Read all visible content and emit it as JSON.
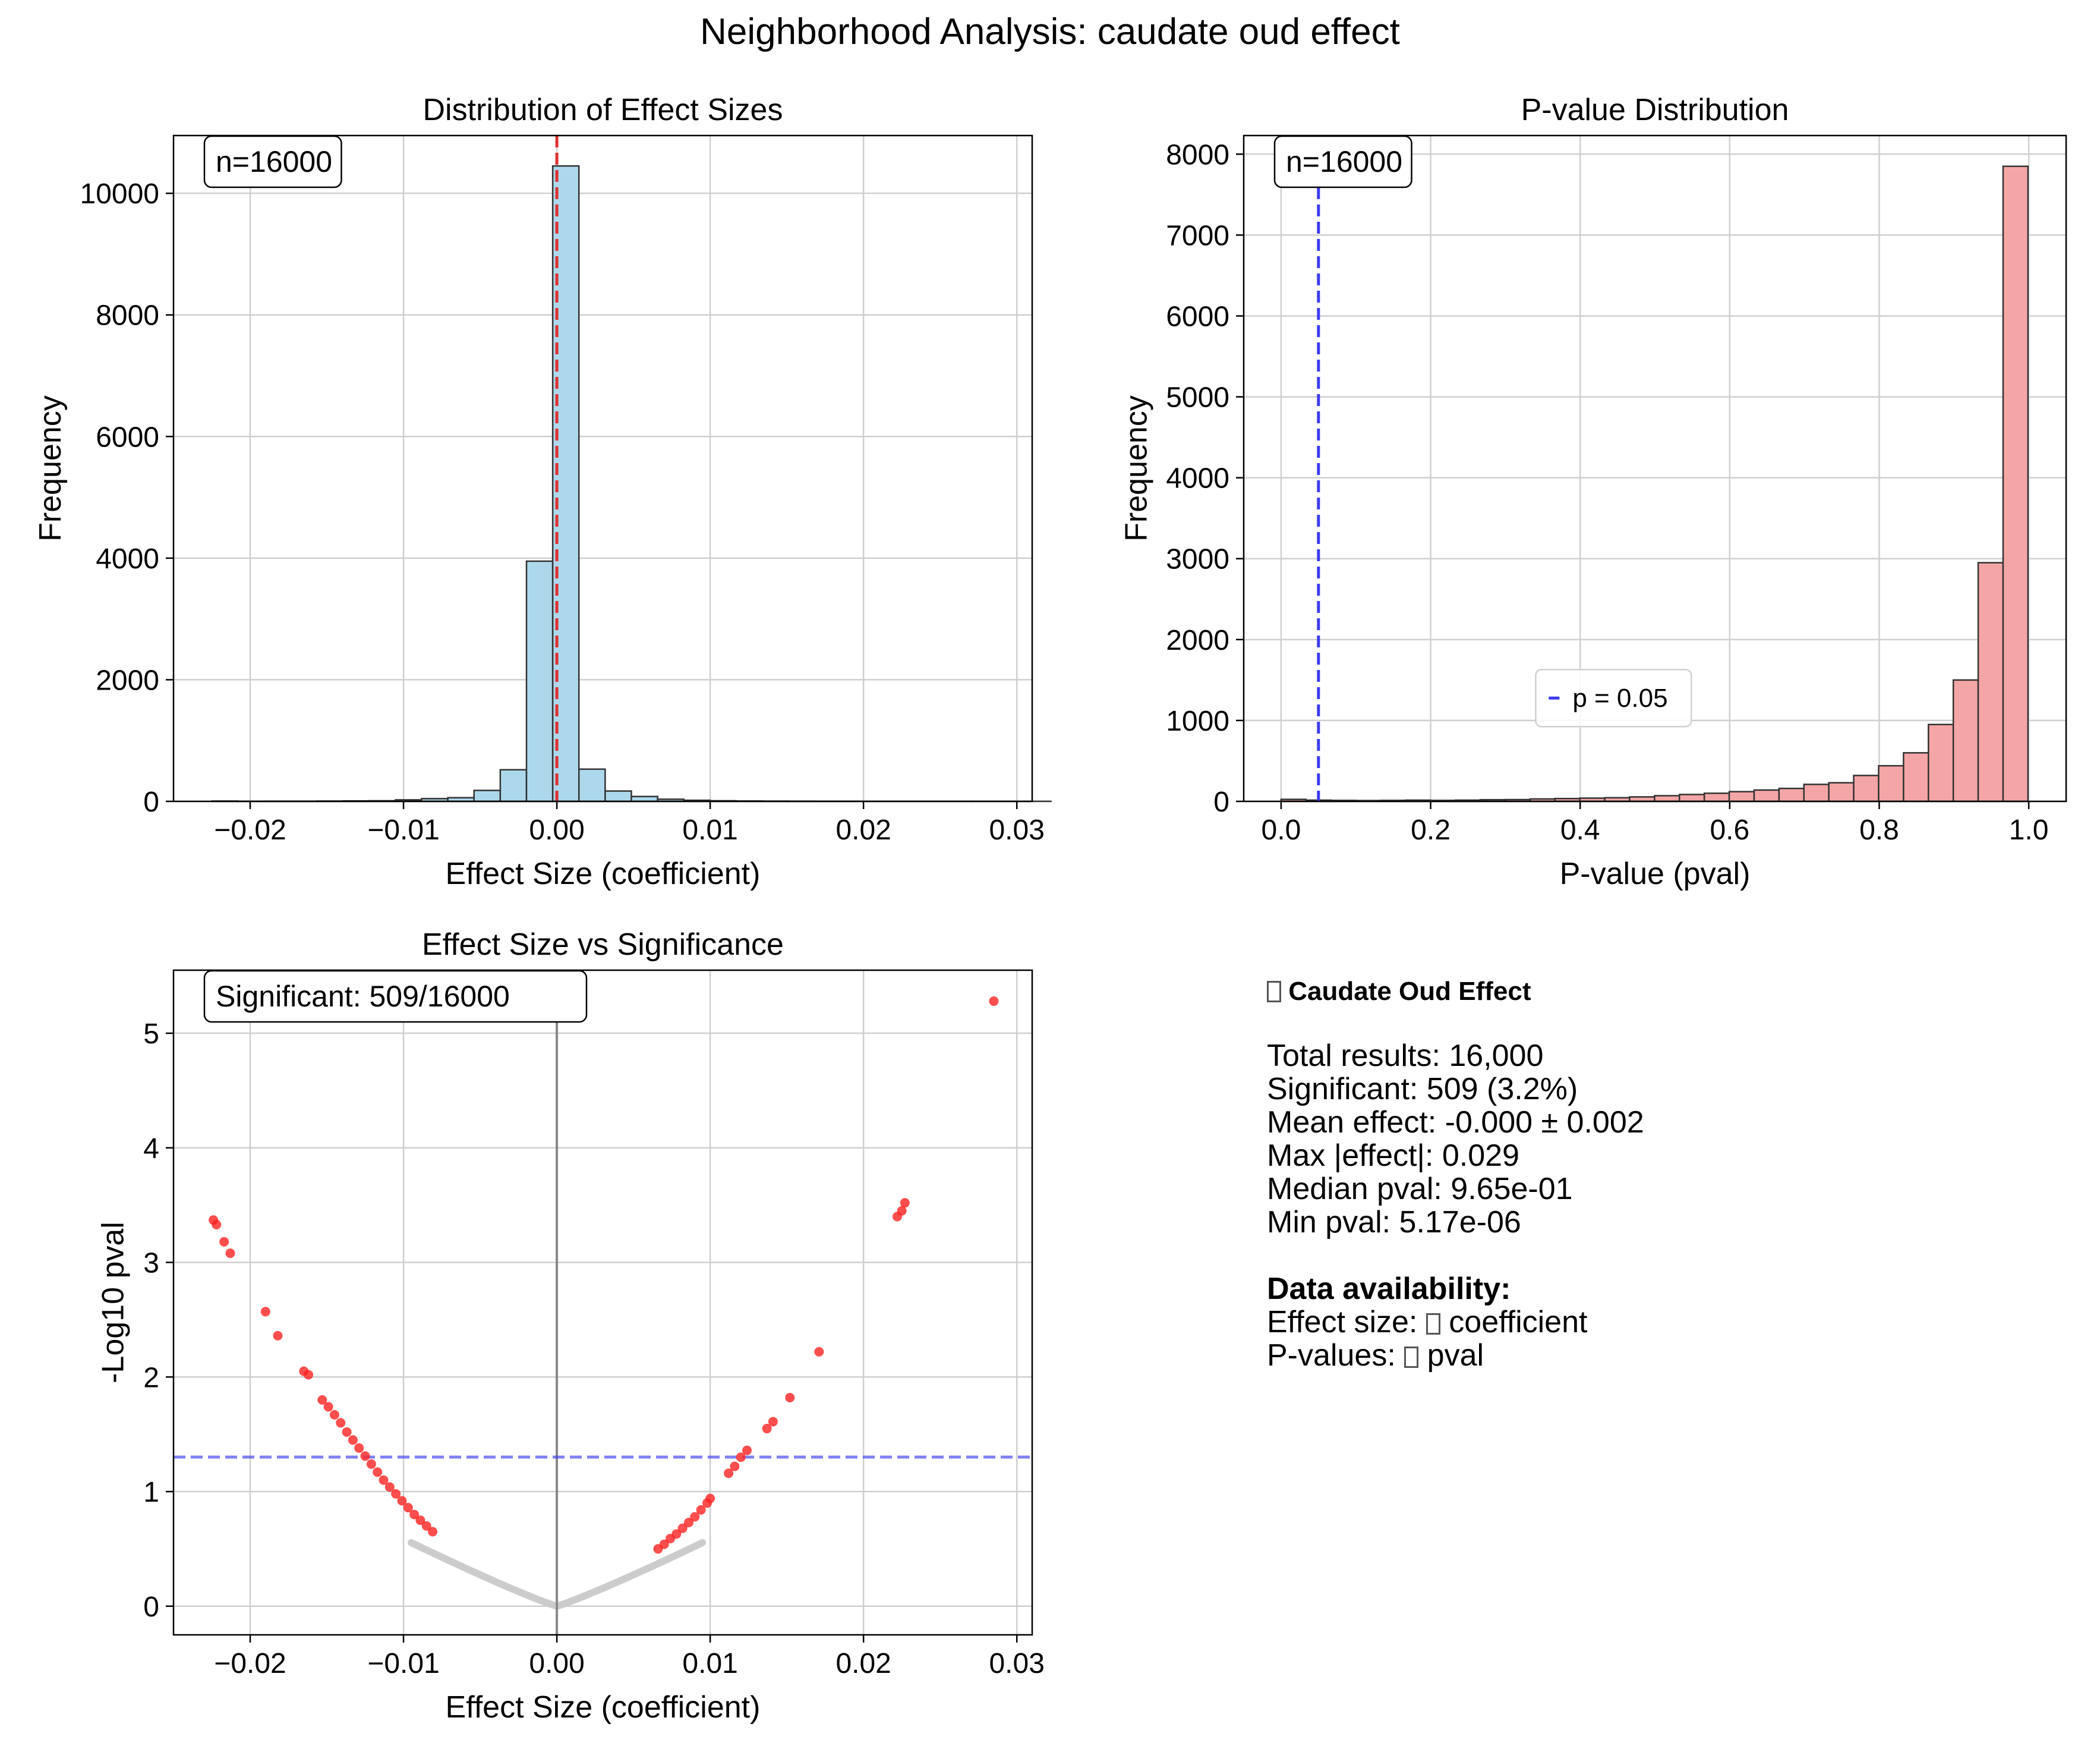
{
  "figure_title": "Neighborhood Analysis: caudate oud effect",
  "colors": {
    "hist_fill": "#add8ec",
    "pval_fill": "#f4a6a6",
    "bar_edge": "#333333",
    "ref_red": "#e03030",
    "ref_blue": "#3c3cf0",
    "sig_point": "#ff2222",
    "nonsig_point": "#cccccc",
    "grid": "#cfcfcf"
  },
  "chart_data": [
    {
      "type": "bar",
      "title": "Distribution of Effect Sizes",
      "xlabel": "Effect Size (coefficient)",
      "ylabel": "Frequency",
      "xlim": [
        -0.025,
        0.031
      ],
      "ylim": [
        0,
        10950
      ],
      "xticks": [
        -0.02,
        -0.01,
        0.0,
        0.01,
        0.02,
        0.03
      ],
      "xtick_labels": [
        "−0.02",
        "−0.01",
        "0.00",
        "0.01",
        "0.02",
        "0.03"
      ],
      "yticks": [
        0,
        2000,
        4000,
        6000,
        8000,
        10000
      ],
      "ytick_labels": [
        "0",
        "2000",
        "4000",
        "6000",
        "8000",
        "10000"
      ],
      "bin_start": -0.0225,
      "bin_width": 0.00171,
      "values": [
        5,
        2,
        3,
        3,
        5,
        8,
        10,
        25,
        45,
        60,
        180,
        520,
        3950,
        10450,
        530,
        170,
        80,
        35,
        18,
        10,
        6,
        4,
        3,
        2,
        2,
        1,
        1,
        1,
        1,
        1,
        1,
        1
      ],
      "reference_line": {
        "x": 0.0,
        "style": "dashed",
        "color": "red"
      },
      "annotation": "n=16000",
      "grid": true
    },
    {
      "type": "bar",
      "title": "P-value Distribution",
      "xlabel": "P-value (pval)",
      "ylabel": "Frequency",
      "xlim": [
        -0.05,
        1.05
      ],
      "ylim": [
        0,
        8230
      ],
      "xticks": [
        0.0,
        0.2,
        0.4,
        0.6,
        0.8,
        1.0
      ],
      "xtick_labels": [
        "0.0",
        "0.2",
        "0.4",
        "0.6",
        "0.8",
        "1.0"
      ],
      "yticks": [
        0,
        1000,
        2000,
        3000,
        4000,
        5000,
        6000,
        7000,
        8000
      ],
      "ytick_labels": [
        "0",
        "1000",
        "2000",
        "3000",
        "4000",
        "5000",
        "6000",
        "7000",
        "8000"
      ],
      "bin_start": 0.0,
      "bin_width": 0.0333,
      "values": [
        25,
        15,
        12,
        10,
        12,
        15,
        12,
        15,
        20,
        22,
        30,
        35,
        40,
        45,
        55,
        70,
        85,
        100,
        120,
        140,
        160,
        210,
        230,
        320,
        440,
        600,
        950,
        1500,
        2950,
        7850
      ],
      "reference_line": {
        "x": 0.05,
        "style": "dashed",
        "color": "blue"
      },
      "legend": {
        "entries": [
          "p = 0.05"
        ],
        "placement": "lower center"
      },
      "annotation": "n=16000",
      "grid": true
    },
    {
      "type": "scatter",
      "title": "Effect Size vs Significance",
      "xlabel": "Effect Size (coefficient)",
      "ylabel": "-Log10 pval",
      "xlim": [
        -0.025,
        0.031
      ],
      "ylim": [
        -0.25,
        5.55
      ],
      "xticks": [
        -0.02,
        -0.01,
        0.0,
        0.01,
        0.02,
        0.03
      ],
      "xtick_labels": [
        "−0.02",
        "−0.01",
        "0.00",
        "0.01",
        "0.02",
        "0.03"
      ],
      "yticks": [
        0,
        1,
        2,
        3,
        4,
        5
      ],
      "ytick_labels": [
        "0",
        "1",
        "2",
        "3",
        "4",
        "5"
      ],
      "threshold_y": 1.301,
      "vertical_line_x": 0.0,
      "annotation": "Significant: 509/16000",
      "significant_points": [
        [
          -0.0224,
          3.37
        ],
        [
          -0.0222,
          3.33
        ],
        [
          -0.0217,
          3.18
        ],
        [
          -0.0213,
          3.08
        ],
        [
          -0.019,
          2.57
        ],
        [
          -0.0182,
          2.36
        ],
        [
          -0.0165,
          2.05
        ],
        [
          -0.0162,
          2.02
        ],
        [
          -0.0153,
          1.8
        ],
        [
          -0.0149,
          1.74
        ],
        [
          -0.0145,
          1.67
        ],
        [
          -0.0141,
          1.6
        ],
        [
          -0.0137,
          1.52
        ],
        [
          -0.0133,
          1.45
        ],
        [
          -0.0129,
          1.38
        ],
        [
          -0.0125,
          1.31
        ],
        [
          -0.0121,
          1.24
        ],
        [
          -0.0117,
          1.17
        ],
        [
          -0.0113,
          1.1
        ],
        [
          -0.0109,
          1.04
        ],
        [
          -0.0105,
          0.98
        ],
        [
          -0.0101,
          0.92
        ],
        [
          -0.0097,
          0.86
        ],
        [
          -0.0093,
          0.8
        ],
        [
          -0.0089,
          0.75
        ],
        [
          -0.0085,
          0.7
        ],
        [
          -0.0081,
          0.65
        ],
        [
          0.0066,
          0.5
        ],
        [
          0.007,
          0.54
        ],
        [
          0.0074,
          0.59
        ],
        [
          0.0078,
          0.63
        ],
        [
          0.0082,
          0.68
        ],
        [
          0.0086,
          0.73
        ],
        [
          0.009,
          0.78
        ],
        [
          0.0094,
          0.84
        ],
        [
          0.0098,
          0.9
        ],
        [
          0.01,
          0.94
        ],
        [
          0.0112,
          1.16
        ],
        [
          0.0116,
          1.22
        ],
        [
          0.012,
          1.3
        ],
        [
          0.0124,
          1.36
        ],
        [
          0.0137,
          1.55
        ],
        [
          0.0141,
          1.61
        ],
        [
          0.0152,
          1.82
        ],
        [
          0.0171,
          2.22
        ],
        [
          0.0222,
          3.4
        ],
        [
          0.0225,
          3.45
        ],
        [
          0.0227,
          3.52
        ],
        [
          0.0285,
          5.28
        ]
      ],
      "nonsignificant_curve": {
        "x_min": -0.0095,
        "x_max": 0.0095,
        "coef": 93,
        "exponent": 1.1
      },
      "grid": true
    }
  ],
  "summary": {
    "title": "Caudate Oud Effect",
    "lines": [
      "Total results: 16,000",
      "Significant: 509 (3.2%)",
      "Mean effect: -0.000 ± 0.002",
      "Max |effect|: 0.029",
      "Median pval: 9.65e-01",
      "Min pval: 5.17e-06"
    ],
    "availability_heading": "Data availability:",
    "effect_prefix": "Effect size: ",
    "effect_value": "coefficient",
    "pval_prefix": "P-values: ",
    "pval_value": "pval"
  }
}
